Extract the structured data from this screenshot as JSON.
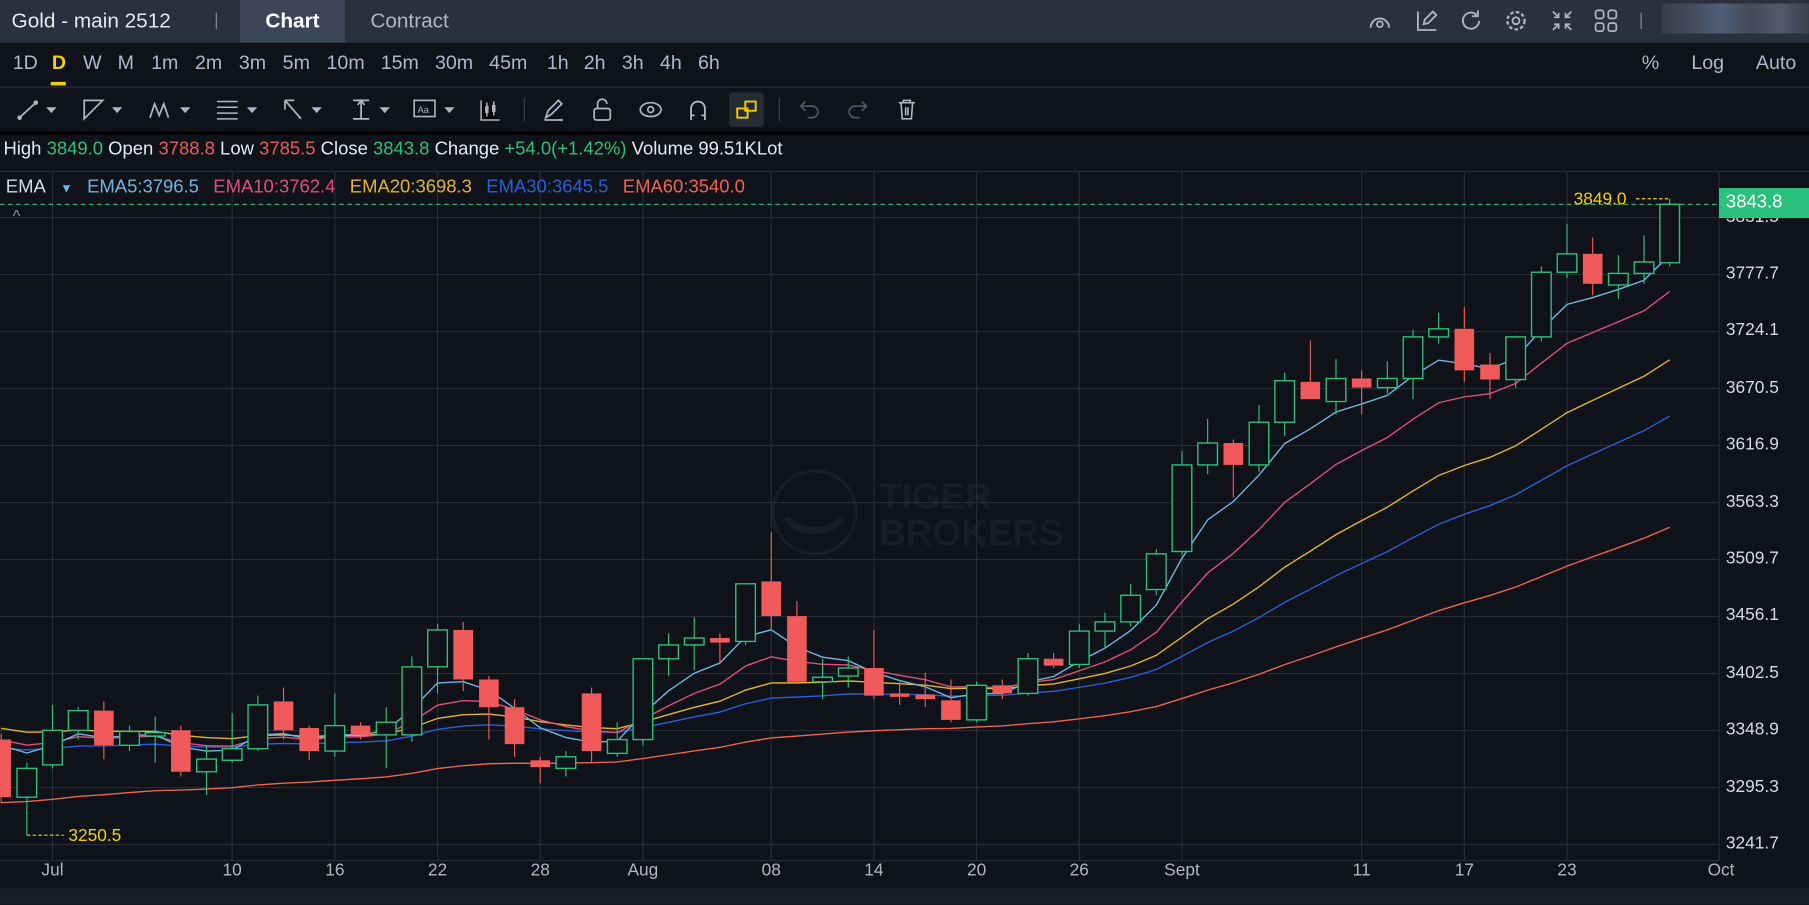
{
  "header": {
    "title": "Gold - main 2512",
    "tabs": [
      "Chart",
      "Contract"
    ],
    "icons": [
      "speedometer-icon",
      "edit-icon",
      "refresh-icon",
      "settings-icon",
      "collapse-icon",
      "grid-icon"
    ]
  },
  "timeframes": {
    "items": [
      "1D",
      "D",
      "W",
      "M",
      "1m",
      "2m",
      "3m",
      "5m",
      "10m",
      "15m",
      "30m",
      "45m",
      "1h",
      "2h",
      "3h",
      "4h",
      "6h"
    ],
    "selected": "D",
    "right": [
      "%",
      "Log",
      "Auto"
    ]
  },
  "info": {
    "high_label": "High",
    "high": "3849.0",
    "open_label": "Open",
    "open": "3788.8",
    "low_label": "Low",
    "low": "3785.5",
    "close_label": "Close",
    "close": "3843.8",
    "change_label": "Change",
    "change": "+54.0(+1.42%)",
    "volume_label": "Volume",
    "volume": "99.51KLot"
  },
  "ema_legend": {
    "name": "EMA",
    "ema5": "EMA5:3796.5",
    "ema10": "EMA10:3762.4",
    "ema20": "EMA20:3698.3",
    "ema30": "EMA30:3645.5",
    "ema60": "EMA60:3540.0"
  },
  "colors": {
    "up": "#2ac17c",
    "down": "#f05a5a",
    "ema5": "#6fb6e2",
    "ema10": "#de4f7c",
    "ema20": "#e3b526",
    "ema30": "#2a5fd6",
    "ema60": "#ee6450",
    "grid": "#272d38"
  },
  "watermark": {
    "line1": "TIGER",
    "line2": "BROKERS"
  },
  "chart_data": {
    "type": "candlestick",
    "ylim": [
      3241.7,
      3831.3
    ],
    "y_ticks": [
      "3831.5",
      "3777.7",
      "3724.1",
      "3670.5",
      "3616.9",
      "3563.3",
      "3509.7",
      "3456.1",
      "3402.5",
      "3348.9",
      "3295.3",
      "3241.7"
    ],
    "x_ticks": [
      {
        "label": "Jul",
        "index": 2
      },
      {
        "label": "10",
        "index": 9
      },
      {
        "label": "16",
        "index": 13
      },
      {
        "label": "22",
        "index": 17
      },
      {
        "label": "28",
        "index": 21
      },
      {
        "label": "Aug",
        "index": 25
      },
      {
        "label": "08",
        "index": 30
      },
      {
        "label": "14",
        "index": 34
      },
      {
        "label": "20",
        "index": 38
      },
      {
        "label": "26",
        "index": 42
      },
      {
        "label": "Sept",
        "index": 46
      },
      {
        "label": "11",
        "index": 53
      },
      {
        "label": "17",
        "index": 57
      },
      {
        "label": "23",
        "index": 61
      },
      {
        "label": "Oct",
        "index": 67
      }
    ],
    "last_price": "3843.8",
    "high_marker": "3849.0",
    "low_marker": "3250.5",
    "ohlc": [
      [
        3340.4,
        3345.9,
        3280.8,
        3286.2
      ],
      [
        3286.2,
        3318.7,
        3250.5,
        3313.3
      ],
      [
        3316.6,
        3373.0,
        3313.3,
        3349.1
      ],
      [
        3349.1,
        3370.8,
        3340.4,
        3367.6
      ],
      [
        3367.6,
        3376.2,
        3322.0,
        3335.0
      ],
      [
        3335.0,
        3353.5,
        3329.6,
        3348.0
      ],
      [
        3343.7,
        3362.1,
        3318.7,
        3346.9
      ],
      [
        3349.1,
        3353.5,
        3305.7,
        3310.1
      ],
      [
        3310.1,
        3335.0,
        3288.4,
        3322.0
      ],
      [
        3320.9,
        3365.4,
        3318.7,
        3331.8
      ],
      [
        3331.8,
        3381.7,
        3329.6,
        3373.0
      ],
      [
        3376.2,
        3389.3,
        3340.4,
        3349.1
      ],
      [
        3351.3,
        3353.5,
        3320.9,
        3329.6
      ],
      [
        3329.6,
        3383.8,
        3324.2,
        3353.5
      ],
      [
        3353.5,
        3356.7,
        3340.4,
        3344.8
      ],
      [
        3344.8,
        3370.8,
        3313.3,
        3356.7
      ],
      [
        3344.8,
        3418.6,
        3338.3,
        3408.8
      ],
      [
        3408.8,
        3448.9,
        3383.8,
        3443.5
      ],
      [
        3443.5,
        3451.1,
        3386.0,
        3396.9
      ],
      [
        3396.9,
        3400.1,
        3340.4,
        3370.8
      ],
      [
        3370.8,
        3378.4,
        3324.2,
        3336.1
      ],
      [
        3320.9,
        3324.2,
        3299.2,
        3314.4
      ],
      [
        3313.3,
        3329.6,
        3305.7,
        3324.2
      ],
      [
        3383.8,
        3389.3,
        3318.7,
        3329.6
      ],
      [
        3327.4,
        3356.7,
        3324.2,
        3340.4
      ],
      [
        3340.4,
        3416.4,
        3335.0,
        3416.4
      ],
      [
        3416.4,
        3440.3,
        3400.1,
        3429.4
      ],
      [
        3429.4,
        3455.4,
        3405.5,
        3435.9
      ],
      [
        3435.9,
        3440.3,
        3411.0,
        3431.6
      ],
      [
        3432.7,
        3486.9,
        3429.4,
        3486.9
      ],
      [
        3489.1,
        3535.7,
        3443.5,
        3456.5
      ],
      [
        3456.5,
        3470.6,
        3392.5,
        3394.7
      ],
      [
        3394.7,
        3416.4,
        3378.4,
        3399.0
      ],
      [
        3400.1,
        3418.6,
        3389.3,
        3407.7
      ],
      [
        3407.7,
        3443.5,
        3378.4,
        3381.7
      ],
      [
        3383.8,
        3394.7,
        3373.0,
        3380.6
      ],
      [
        3382.7,
        3403.4,
        3370.8,
        3378.4
      ],
      [
        3377.3,
        3396.9,
        3356.7,
        3358.9
      ],
      [
        3358.9,
        3394.7,
        3356.7,
        3391.4
      ],
      [
        3391.4,
        3396.9,
        3378.4,
        3383.8
      ],
      [
        3383.8,
        3421.8,
        3381.7,
        3416.4
      ],
      [
        3416.4,
        3421.8,
        3407.7,
        3409.9
      ],
      [
        3411.0,
        3448.9,
        3407.7,
        3442.4
      ],
      [
        3442.4,
        3459.8,
        3427.2,
        3451.1
      ],
      [
        3451.1,
        3486.9,
        3446.8,
        3476.1
      ],
      [
        3481.5,
        3519.5,
        3476.1,
        3515.1
      ],
      [
        3517.3,
        3611.7,
        3514.0,
        3598.7
      ],
      [
        3598.7,
        3642.1,
        3590.0,
        3619.3
      ],
      [
        3619.3,
        3622.5,
        3568.3,
        3598.7
      ],
      [
        3598.7,
        3655.1,
        3592.2,
        3638.8
      ],
      [
        3638.8,
        3685.5,
        3625.8,
        3677.9
      ],
      [
        3676.8,
        3715.8,
        3660.5,
        3660.5
      ],
      [
        3658.3,
        3698.5,
        3646.4,
        3680.0
      ],
      [
        3680.0,
        3687.6,
        3646.4,
        3671.4
      ],
      [
        3671.4,
        3696.3,
        3665.9,
        3680.0
      ],
      [
        3680.0,
        3725.6,
        3660.5,
        3719.1
      ],
      [
        3719.1,
        3741.9,
        3712.6,
        3726.7
      ],
      [
        3726.7,
        3747.3,
        3676.8,
        3687.6
      ],
      [
        3693.1,
        3703.9,
        3660.5,
        3679.0
      ],
      [
        3679.0,
        3720.2,
        3671.4,
        3719.1
      ],
      [
        3719.1,
        3785.3,
        3714.8,
        3779.9
      ],
      [
        3779.9,
        3825.4,
        3774.4,
        3797.2
      ],
      [
        3797.2,
        3812.4,
        3758.2,
        3769.0
      ],
      [
        3767.9,
        3796.1,
        3754.9,
        3778.8
      ],
      [
        3778.8,
        3814.6,
        3769.0,
        3789.6
      ],
      [
        3788.8,
        3849.0,
        3785.5,
        3843.8
      ]
    ],
    "ema_seed": {
      "ema5": 3335,
      "ema10": 3340,
      "ema20": 3351,
      "ema30": 3332,
      "ema60": 3281
    }
  }
}
